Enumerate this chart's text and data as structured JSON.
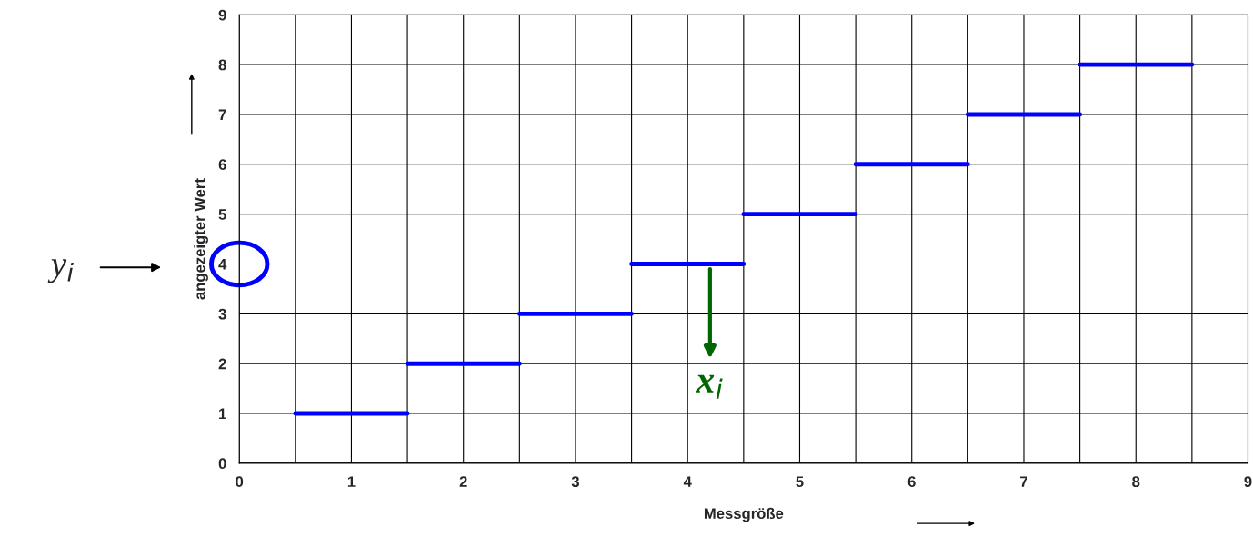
{
  "chart_data": {
    "type": "line",
    "xlabel": "Messgröße",
    "ylabel": "angezeigter Wert",
    "series": [
      {
        "color": "#0000ff",
        "x": [
          0.5,
          1.5
        ],
        "values": [
          1,
          1
        ]
      },
      {
        "color": "#0000ff",
        "x": [
          1.5,
          2.5
        ],
        "values": [
          2,
          2
        ]
      },
      {
        "color": "#0000ff",
        "x": [
          2.5,
          3.5
        ],
        "values": [
          3,
          3
        ]
      },
      {
        "color": "#0000ff",
        "x": [
          3.5,
          4.5
        ],
        "values": [
          4,
          4
        ]
      },
      {
        "color": "#0000ff",
        "x": [
          4.5,
          5.5
        ],
        "values": [
          5,
          5
        ]
      },
      {
        "color": "#0000ff",
        "x": [
          5.5,
          6.5
        ],
        "values": [
          6,
          6
        ]
      },
      {
        "color": "#0000ff",
        "x": [
          6.5,
          7.5
        ],
        "values": [
          7,
          7
        ]
      },
      {
        "color": "#0000ff",
        "x": [
          7.5,
          8.5
        ],
        "values": [
          8,
          8
        ]
      }
    ],
    "xlim": [
      0,
      9
    ],
    "ylim": [
      0,
      9
    ],
    "xticks": [
      0,
      {
        "value": 0.5,
        "label": null
      },
      1,
      {
        "value": 1.5,
        "label": null
      },
      2,
      {
        "value": 2.5,
        "label": null
      },
      3,
      {
        "value": 3.5,
        "label": null
      },
      4,
      {
        "value": 4.5,
        "label": null
      },
      5,
      {
        "value": 5.5,
        "label": null
      },
      6,
      {
        "value": 6.5,
        "label": null
      },
      7,
      {
        "value": 7.5,
        "label": null
      },
      8,
      {
        "value": 8.5,
        "label": null
      },
      9
    ],
    "yticks": [
      0,
      1,
      2,
      3,
      4,
      5,
      6,
      7,
      8,
      9
    ],
    "grid": true,
    "annotations": [
      "y$_{i}$",
      {
        "text": "x$_{i}$",
        "x": 4.2,
        "y": 4
      }
    ]
  }
}
